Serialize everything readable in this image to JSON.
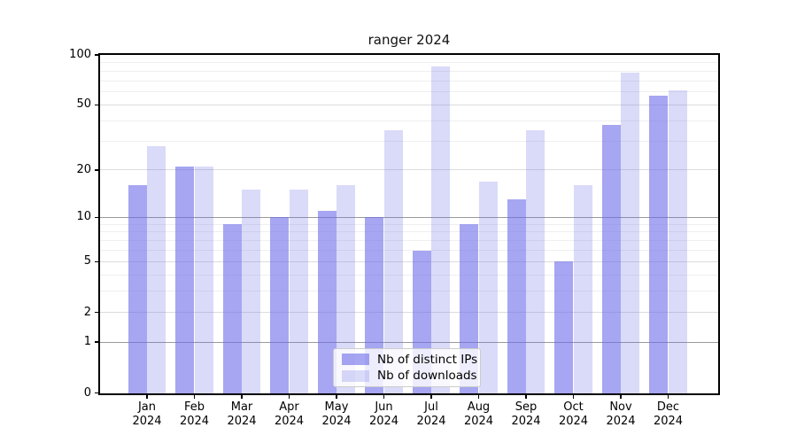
{
  "title": "ranger 2024",
  "chart_data": {
    "type": "bar",
    "title": "ranger 2024",
    "categories": [
      "Jan 2024",
      "Feb 2024",
      "Mar 2024",
      "Apr 2024",
      "May 2024",
      "Jun 2024",
      "Jul 2024",
      "Aug 2024",
      "Sep 2024",
      "Oct 2024",
      "Nov 2024",
      "Dec 2024"
    ],
    "series": [
      {
        "name": "Nb of distinct IPs",
        "color": "rgba(106,106,233,0.6)",
        "values": [
          16,
          21,
          9,
          10,
          11,
          10,
          6,
          9,
          13,
          5,
          38,
          57
        ]
      },
      {
        "name": "Nb of downloads",
        "color": "rgba(106,106,233,0.25)",
        "values": [
          28,
          21,
          15,
          15,
          16,
          35,
          85,
          17,
          35,
          16,
          78,
          61
        ]
      }
    ],
    "xlabel": "",
    "ylabel": "",
    "yscale": "log1p",
    "ylim": [
      0,
      100
    ],
    "yticks": [
      0,
      1,
      2,
      5,
      10,
      20,
      50,
      100
    ],
    "yticks_decade": [
      1,
      10
    ],
    "yticks_minor": [
      3,
      4,
      6,
      7,
      8,
      9,
      30,
      40,
      60,
      70,
      80,
      90
    ],
    "grid": true,
    "legend_position": "lower center",
    "axis_color": "#000000",
    "background_color": "#ffffff"
  }
}
